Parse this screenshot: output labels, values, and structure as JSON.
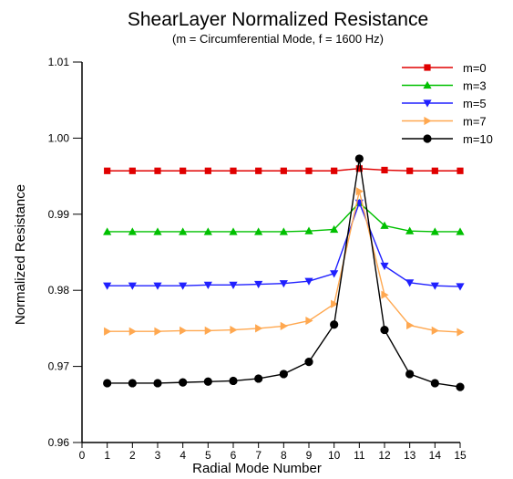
{
  "chart_data": {
    "type": "line",
    "title": "ShearLayer Normalized Resistance",
    "subtitle": "(m = Circumferential Mode, f = 1600 Hz)",
    "xlabel": "Radial Mode Number",
    "ylabel": "Normalized Resistance",
    "xlim": [
      0,
      15
    ],
    "ylim": [
      0.96,
      1.01
    ],
    "xticks": [
      "0",
      "1",
      "2",
      "3",
      "4",
      "5",
      "6",
      "7",
      "8",
      "9",
      "10",
      "11",
      "12",
      "13",
      "14",
      "15"
    ],
    "yticks": [
      "0.96",
      "0.97",
      "0.98",
      "0.99",
      "1.00",
      "1.01"
    ],
    "grid": false,
    "legend_position": "top-right",
    "x": [
      1,
      2,
      3,
      4,
      5,
      6,
      7,
      8,
      9,
      10,
      11,
      12,
      13,
      14,
      15
    ],
    "series": [
      {
        "name": "m=0",
        "color": "#e00000",
        "marker": "square",
        "values": [
          0.9957,
          0.9957,
          0.9957,
          0.9957,
          0.9957,
          0.9957,
          0.9957,
          0.9957,
          0.9957,
          0.9957,
          0.996,
          0.9958,
          0.9957,
          0.9957,
          0.9957
        ]
      },
      {
        "name": "m=3",
        "color": "#00c000",
        "marker": "triangle-up",
        "values": [
          0.9877,
          0.9877,
          0.9877,
          0.9877,
          0.9877,
          0.9877,
          0.9877,
          0.9877,
          0.9878,
          0.988,
          0.9915,
          0.9885,
          0.9878,
          0.9877,
          0.9877
        ]
      },
      {
        "name": "m=5",
        "color": "#2020ff",
        "marker": "triangle-down",
        "values": [
          0.9806,
          0.9806,
          0.9806,
          0.9806,
          0.9807,
          0.9807,
          0.9808,
          0.9809,
          0.9812,
          0.9822,
          0.9915,
          0.9832,
          0.981,
          0.9806,
          0.9805
        ]
      },
      {
        "name": "m=7",
        "color": "#ffa850",
        "marker": "triangle-right",
        "values": [
          0.9746,
          0.9746,
          0.9746,
          0.9747,
          0.9747,
          0.9748,
          0.975,
          0.9753,
          0.976,
          0.9782,
          0.993,
          0.9794,
          0.9754,
          0.9747,
          0.9745
        ]
      },
      {
        "name": "m=10",
        "color": "#000000",
        "marker": "circle",
        "values": [
          0.9678,
          0.9678,
          0.9678,
          0.9679,
          0.968,
          0.9681,
          0.9684,
          0.969,
          0.9706,
          0.9755,
          0.9973,
          0.9748,
          0.969,
          0.9678,
          0.9673
        ]
      }
    ]
  }
}
